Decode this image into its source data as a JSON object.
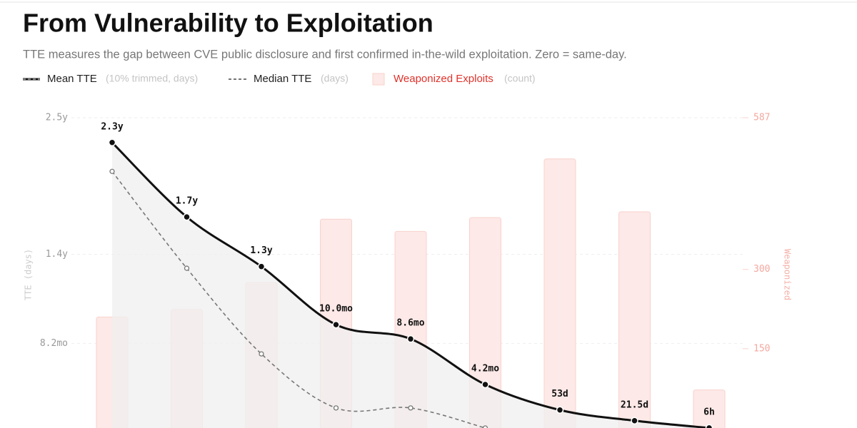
{
  "chart_data": {
    "type": "bar-line",
    "title": "From Vulnerability to Exploitation",
    "subtitle": "TTE measures the gap between CVE public disclosure and first confirmed in-the-wild exploitation. Zero = same-day.",
    "ylabel": "TTE (days)",
    "y2label": "Weaponized",
    "categories": [
      null,
      null,
      null,
      null,
      null,
      null,
      null,
      null,
      null
    ],
    "ylim": [
      0,
      913
    ],
    "yticks": [
      {
        "value": 913,
        "label": "2.5y"
      },
      {
        "value": 511,
        "label": "1.4y"
      },
      {
        "value": 249,
        "label": "8.2mo"
      }
    ],
    "y2lim": [
      0,
      587
    ],
    "y2ticks": [
      587,
      300,
      150
    ],
    "grid": true,
    "series": [
      {
        "name": "Mean TTE",
        "note": "(10% trimmed, days)",
        "kind": "line",
        "color": "#111111",
        "area_color": "#efefef",
        "values": [
          840,
          621,
          475,
          304,
          262,
          128,
          53,
          21.5,
          0.25
        ],
        "value_labels": [
          "2.3y",
          "1.7y",
          "1.3y",
          "10.0mo",
          "8.6mo",
          "4.2mo",
          "53d",
          "21.5d",
          "6h"
        ]
      },
      {
        "name": "Median TTE",
        "note": "(days)",
        "kind": "dashed",
        "color": "#777777",
        "values": [
          755,
          470,
          218,
          59,
          59,
          0,
          null,
          null,
          null
        ]
      },
      {
        "name": "Weaponized Exploits",
        "note": "(count)",
        "kind": "bar",
        "axis": "y2",
        "color": "#fde9e7",
        "stroke": "#f8d2cd",
        "legend_color": "#e0322b",
        "values": [
          210,
          224,
          275,
          395,
          372,
          398,
          509,
          409,
          72
        ]
      }
    ]
  }
}
